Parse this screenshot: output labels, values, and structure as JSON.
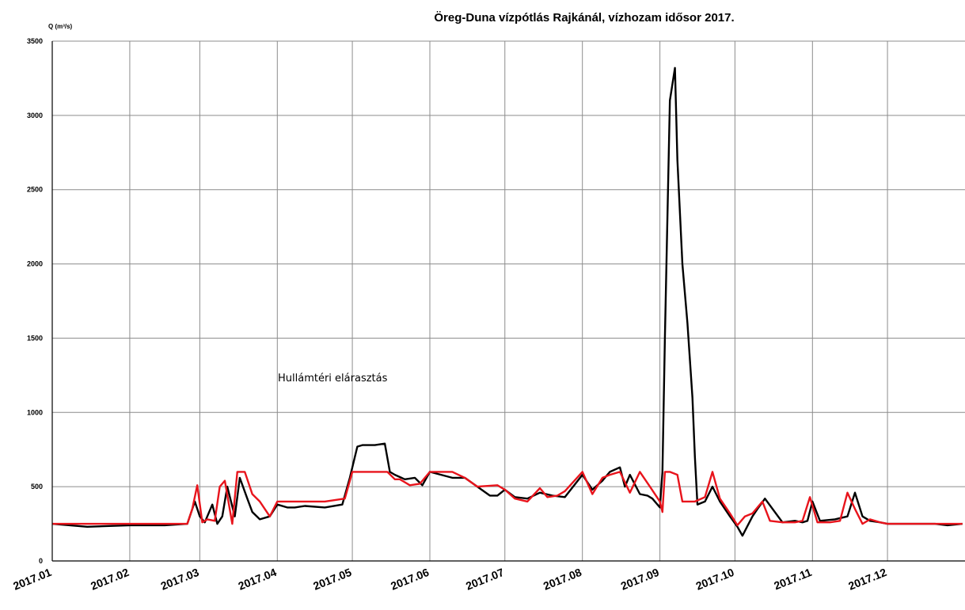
{
  "chart_data": {
    "type": "line",
    "title": "Öreg-Duna vízpótlás Rajkánál, vízhozam idősor 2017.",
    "ylabel": "Q (m³/s)",
    "xlabel": "",
    "ylim": [
      0,
      3500
    ],
    "yticks": [
      "0",
      "500",
      "1000",
      "1500",
      "2000",
      "2500",
      "3000",
      "3500"
    ],
    "x_tick_labels": [
      "2017.01",
      "2017.02",
      "2017.03",
      "2017.04",
      "2017.05",
      "2017.06",
      "2017.07",
      "2017.08",
      "2017.09",
      "2017.10",
      "2017.11",
      "2017.12"
    ],
    "grid": true,
    "annotation": "Hullámtéri elárasztás",
    "colors": {
      "series_black": "#000000",
      "series_red": "#e8141c",
      "grid": "#8c8c8c"
    },
    "series": [
      {
        "color": "#000000",
        "x": [
          "2017-01-01",
          "2017-01-15",
          "2017-02-01",
          "2017-02-15",
          "2017-02-24",
          "2017-02-27",
          "2017-03-01",
          "2017-03-03",
          "2017-03-06",
          "2017-03-08",
          "2017-03-10",
          "2017-03-12",
          "2017-03-15",
          "2017-03-17",
          "2017-03-20",
          "2017-03-22",
          "2017-03-25",
          "2017-03-29",
          "2017-04-01",
          "2017-04-05",
          "2017-04-08",
          "2017-04-12",
          "2017-04-20",
          "2017-04-27",
          "2017-04-30",
          "2017-05-03",
          "2017-05-05",
          "2017-05-10",
          "2017-05-14",
          "2017-05-16",
          "2017-05-18",
          "2017-05-22",
          "2017-05-26",
          "2017-05-29",
          "2017-06-01",
          "2017-06-10",
          "2017-06-15",
          "2017-06-20",
          "2017-06-25",
          "2017-06-28",
          "2017-07-01",
          "2017-07-05",
          "2017-07-10",
          "2017-07-15",
          "2017-07-20",
          "2017-07-25",
          "2017-08-01",
          "2017-08-05",
          "2017-08-09",
          "2017-08-12",
          "2017-08-16",
          "2017-08-18",
          "2017-08-20",
          "2017-08-24",
          "2017-08-27",
          "2017-08-29",
          "2017-09-01",
          "2017-09-02",
          "2017-09-03",
          "2017-09-05",
          "2017-09-07",
          "2017-09-08",
          "2017-09-10",
          "2017-09-12",
          "2017-09-14",
          "2017-09-15",
          "2017-09-16",
          "2017-09-19",
          "2017-09-22",
          "2017-09-25",
          "2017-09-29",
          "2017-10-02",
          "2017-10-04",
          "2017-10-08",
          "2017-10-10",
          "2017-10-13",
          "2017-10-20",
          "2017-10-25",
          "2017-10-28",
          "2017-10-30",
          "2017-11-01",
          "2017-11-04",
          "2017-11-10",
          "2017-11-15",
          "2017-11-18",
          "2017-11-21",
          "2017-11-24",
          "2017-11-28",
          "2017-12-01",
          "2017-12-10",
          "2017-12-20",
          "2017-12-25",
          "2017-12-31"
        ],
        "y": [
          250,
          230,
          240,
          240,
          250,
          400,
          300,
          260,
          380,
          250,
          300,
          500,
          300,
          560,
          420,
          330,
          280,
          300,
          380,
          360,
          360,
          370,
          360,
          380,
          560,
          770,
          780,
          780,
          790,
          600,
          580,
          550,
          560,
          510,
          600,
          560,
          560,
          500,
          440,
          440,
          480,
          430,
          420,
          460,
          440,
          430,
          580,
          480,
          540,
          600,
          630,
          500,
          580,
          450,
          440,
          420,
          360,
          600,
          1500,
          3100,
          3320,
          2700,
          2000,
          1600,
          1100,
          700,
          380,
          400,
          500,
          400,
          300,
          230,
          170,
          300,
          350,
          420,
          260,
          270,
          260,
          270,
          400,
          270,
          280,
          300,
          460,
          300,
          270,
          260,
          250,
          250,
          250,
          240,
          250
        ]
      },
      {
        "color": "#e8141c",
        "x": [
          "2017-01-01",
          "2017-01-15",
          "2017-02-01",
          "2017-02-15",
          "2017-02-24",
          "2017-02-26",
          "2017-02-28",
          "2017-03-02",
          "2017-03-04",
          "2017-03-07",
          "2017-03-09",
          "2017-03-11",
          "2017-03-14",
          "2017-03-16",
          "2017-03-19",
          "2017-03-22",
          "2017-03-25",
          "2017-03-29",
          "2017-04-01",
          "2017-04-12",
          "2017-04-20",
          "2017-04-28",
          "2017-05-01",
          "2017-05-05",
          "2017-05-15",
          "2017-05-18",
          "2017-05-20",
          "2017-05-24",
          "2017-05-28",
          "2017-06-01",
          "2017-06-10",
          "2017-06-15",
          "2017-06-20",
          "2017-06-28",
          "2017-07-01",
          "2017-07-05",
          "2017-07-10",
          "2017-07-15",
          "2017-07-18",
          "2017-07-22",
          "2017-07-25",
          "2017-08-01",
          "2017-08-05",
          "2017-08-09",
          "2017-08-12",
          "2017-08-16",
          "2017-08-20",
          "2017-08-24",
          "2017-08-28",
          "2017-09-01",
          "2017-09-02",
          "2017-09-03",
          "2017-09-05",
          "2017-09-08",
          "2017-09-10",
          "2017-09-12",
          "2017-09-15",
          "2017-09-19",
          "2017-09-22",
          "2017-09-25",
          "2017-09-29",
          "2017-10-02",
          "2017-10-05",
          "2017-10-08",
          "2017-10-12",
          "2017-10-15",
          "2017-10-20",
          "2017-10-25",
          "2017-10-28",
          "2017-10-31",
          "2017-11-03",
          "2017-11-08",
          "2017-11-12",
          "2017-11-15",
          "2017-11-18",
          "2017-11-21",
          "2017-11-24",
          "2017-11-28",
          "2017-12-01",
          "2017-12-15",
          "2017-12-31"
        ],
        "y": [
          250,
          250,
          250,
          250,
          250,
          350,
          510,
          260,
          280,
          270,
          500,
          540,
          250,
          600,
          600,
          450,
          400,
          300,
          400,
          400,
          400,
          420,
          600,
          600,
          600,
          550,
          550,
          510,
          520,
          600,
          600,
          560,
          500,
          510,
          480,
          420,
          400,
          490,
          430,
          440,
          470,
          600,
          450,
          560,
          580,
          600,
          460,
          600,
          500,
          400,
          330,
          600,
          600,
          580,
          400,
          400,
          400,
          430,
          600,
          420,
          320,
          240,
          300,
          320,
          400,
          270,
          260,
          260,
          270,
          430,
          260,
          260,
          270,
          460,
          350,
          250,
          280,
          260,
          250,
          250,
          250
        ]
      }
    ]
  }
}
